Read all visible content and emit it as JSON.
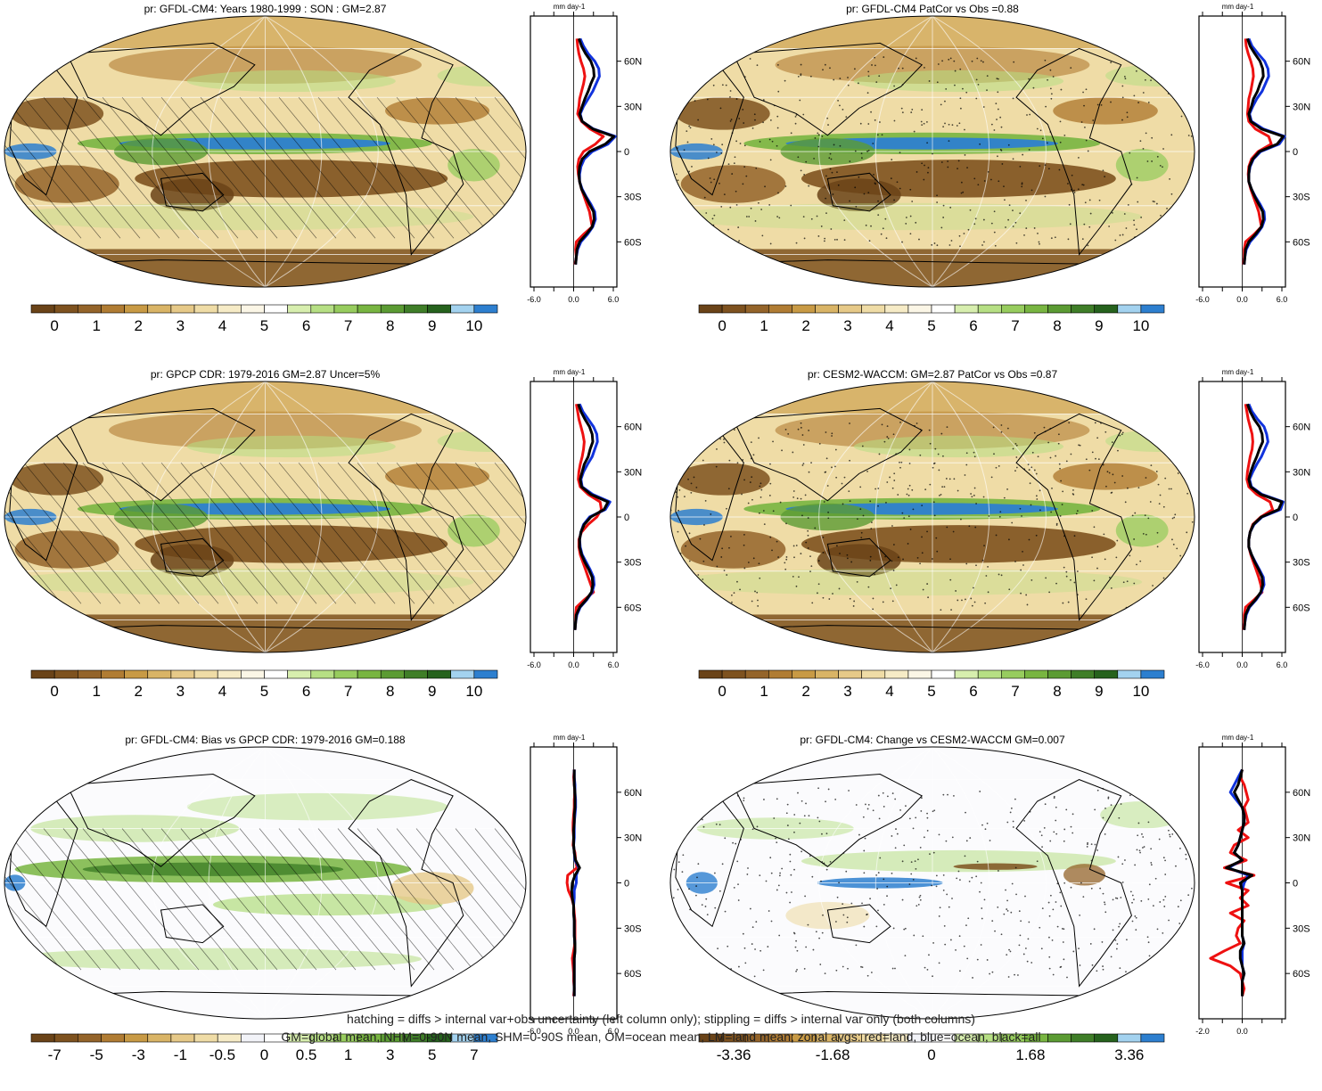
{
  "footer": {
    "line1": "hatching = diffs > internal var+obs uncertainty (left column only); stippling = diffs > internal var only (both columns)",
    "line2": "GM=global mean, NHM=0-90N mean, SHM=0-90S mean, OM=ocean mean, LM=land mean; zonal avgs: red=land, blue=ocean, black=all"
  },
  "colors": {
    "land": "#ee1111",
    "ocean": "#1133dd",
    "all": "#000000",
    "precip_scale": [
      "#6a4318",
      "#7e521f",
      "#94642a",
      "#b07c33",
      "#c89a45",
      "#d9b466",
      "#e6c988",
      "#efdca6",
      "#f6ebc6",
      "#fbf6e6",
      "#ffffff",
      "#d7eeae",
      "#b6df84",
      "#97cc5e",
      "#78b541",
      "#5b9b33",
      "#3f7e28",
      "#26621d",
      "#a3d2ef",
      "#2d7fcf"
    ],
    "bias_scale": [
      "#6a4318",
      "#7e521f",
      "#94642a",
      "#b07c33",
      "#c89a45",
      "#d9b466",
      "#e6c988",
      "#efdca6",
      "#f6ebc6",
      "#f2f3f8",
      "#ffffff",
      "#d7eeae",
      "#b6df84",
      "#97cc5e",
      "#78b541",
      "#5b9b33",
      "#3f7e28",
      "#26621d",
      "#a3d2ef",
      "#2d7fcf"
    ]
  },
  "chart_data": [
    {
      "id": "cm4",
      "type": "heatmap",
      "title": "pr: GFDL-CM4: Years 1980-1999 : SON : GM=2.87",
      "colorbar_labels": [
        "0",
        "1",
        "2",
        "3",
        "4",
        "5",
        "6",
        "7",
        "8",
        "9",
        "10"
      ],
      "colorbar_ticks": [
        0,
        1,
        2,
        3,
        4,
        5,
        6,
        7,
        8,
        9,
        10
      ],
      "hatching": true,
      "zonal_mean": {
        "units": "mm day-1",
        "xticks": [
          "-6.0",
          "0.0",
          "6.0"
        ],
        "xlim": [
          -6,
          6
        ],
        "yticks": [
          "60N",
          "30N",
          "0",
          "30S",
          "60S"
        ],
        "lat": [
          75,
          70,
          65,
          60,
          55,
          50,
          45,
          40,
          35,
          30,
          25,
          20,
          15,
          10,
          5,
          0,
          -5,
          -10,
          -15,
          -20,
          -25,
          -30,
          -35,
          -40,
          -45,
          -50,
          -55,
          -60,
          -65,
          -70,
          -75
        ],
        "land": [
          0.5,
          0.6,
          0.8,
          1.1,
          1.5,
          1.7,
          1.5,
          1.2,
          0.9,
          0.8,
          0.6,
          1.2,
          2.5,
          4.5,
          3.3,
          1.5,
          0.8,
          0.6,
          0.7,
          0.9,
          1.2,
          1.6,
          2.0,
          2.4,
          2.6,
          2.8,
          1.5,
          0.4,
          0.3,
          0.4,
          0.2
        ],
        "ocean": [
          1.0,
          1.5,
          2.2,
          3.2,
          3.8,
          3.9,
          3.4,
          2.9,
          2.2,
          1.5,
          1.0,
          1.3,
          3.0,
          6.3,
          5.2,
          2.8,
          1.6,
          1.1,
          0.9,
          0.9,
          1.3,
          1.9,
          2.6,
          3.2,
          3.3,
          2.9,
          2.1,
          1.1,
          0.6,
          0.4,
          0.3
        ],
        "all": [
          0.8,
          1.2,
          1.8,
          2.6,
          3.0,
          3.1,
          2.6,
          2.2,
          1.7,
          1.3,
          0.9,
          1.3,
          2.9,
          6.1,
          4.8,
          2.4,
          1.3,
          0.9,
          0.8,
          0.9,
          1.2,
          1.8,
          2.4,
          3.0,
          3.1,
          2.8,
          1.9,
          0.9,
          0.5,
          0.4,
          0.3
        ]
      }
    },
    {
      "id": "cm4_patcor",
      "type": "heatmap",
      "title": "pr: GFDL-CM4 PatCor vs Obs =0.88",
      "colorbar_labels": [
        "0",
        "1",
        "2",
        "3",
        "4",
        "5",
        "6",
        "7",
        "8",
        "9",
        "10"
      ],
      "colorbar_ticks": [
        0,
        1,
        2,
        3,
        4,
        5,
        6,
        7,
        8,
        9,
        10
      ],
      "stippling": true,
      "zonal_mean": {
        "units": "mm day-1",
        "xticks": [
          "-6.0",
          "0.0",
          "6.0"
        ],
        "xlim": [
          -6,
          6
        ],
        "yticks": [
          "60N",
          "30N",
          "0",
          "30S",
          "60S"
        ],
        "lat": [
          75,
          70,
          65,
          60,
          55,
          50,
          45,
          40,
          35,
          30,
          25,
          20,
          15,
          10,
          5,
          0,
          -5,
          -10,
          -15,
          -20,
          -25,
          -30,
          -35,
          -40,
          -45,
          -50,
          -55,
          -60,
          -65,
          -70,
          -75
        ],
        "land": [
          0.5,
          0.6,
          0.9,
          1.3,
          1.6,
          1.7,
          1.5,
          1.3,
          1.0,
          0.9,
          0.8,
          1.0,
          2.0,
          4.0,
          4.4,
          2.4,
          1.4,
          1.0,
          0.9,
          1.0,
          1.3,
          1.7,
          2.1,
          2.5,
          2.7,
          2.9,
          1.8,
          0.5,
          0.3,
          0.3,
          0.2
        ],
        "ocean": [
          1.0,
          1.5,
          2.4,
          3.4,
          3.9,
          4.0,
          3.5,
          3.0,
          2.2,
          1.6,
          1.1,
          1.4,
          3.2,
          6.4,
          5.6,
          2.8,
          1.7,
          1.2,
          1.0,
          1.0,
          1.4,
          2.0,
          2.7,
          3.3,
          3.4,
          3.0,
          2.2,
          1.2,
          0.6,
          0.4,
          0.3
        ],
        "all": [
          0.8,
          1.2,
          1.9,
          2.7,
          3.1,
          3.2,
          2.7,
          2.3,
          1.7,
          1.4,
          1.0,
          1.3,
          2.9,
          6.2,
          5.3,
          2.6,
          1.6,
          1.1,
          1.0,
          1.0,
          1.4,
          1.9,
          2.5,
          3.1,
          3.2,
          2.9,
          2.0,
          1.0,
          0.5,
          0.4,
          0.3
        ]
      }
    },
    {
      "id": "gpcp",
      "type": "heatmap",
      "title": "pr: GPCP CDR: 1979-2016 GM=2.87 Uncer=5%",
      "colorbar_labels": [
        "0",
        "1",
        "2",
        "3",
        "4",
        "5",
        "6",
        "7",
        "8",
        "9",
        "10"
      ],
      "colorbar_ticks": [
        0,
        1,
        2,
        3,
        4,
        5,
        6,
        7,
        8,
        9,
        10
      ],
      "hatching": true,
      "zonal_mean": {
        "units": "mm day-1",
        "xticks": [
          "-6.0",
          "0.0",
          "6.0"
        ],
        "xlim": [
          -6,
          6
        ],
        "yticks": [
          "60N",
          "30N",
          "0",
          "30S",
          "60S"
        ],
        "lat": [
          75,
          70,
          65,
          60,
          55,
          50,
          45,
          40,
          35,
          30,
          25,
          20,
          15,
          10,
          5,
          0,
          -5,
          -10,
          -15,
          -20,
          -25,
          -30,
          -35,
          -40,
          -45,
          -50,
          -55,
          -60,
          -65,
          -70,
          -75
        ],
        "land": [
          0.4,
          0.6,
          0.8,
          1.1,
          1.4,
          1.6,
          1.5,
          1.3,
          1.0,
          0.8,
          0.7,
          1.0,
          2.2,
          4.0,
          4.2,
          3.5,
          2.2,
          1.2,
          0.8,
          0.8,
          1.0,
          1.4,
          1.8,
          2.2,
          2.6,
          3.0,
          1.6,
          0.4,
          0.3,
          0.3,
          0.2
        ],
        "ocean": [
          0.9,
          1.4,
          2.2,
          3.0,
          3.5,
          3.6,
          3.2,
          2.8,
          2.1,
          1.5,
          1.1,
          1.3,
          2.9,
          5.5,
          4.8,
          2.4,
          1.5,
          1.1,
          0.9,
          1.0,
          1.3,
          1.9,
          2.5,
          3.0,
          3.1,
          2.8,
          2.0,
          1.0,
          0.5,
          0.3,
          0.2
        ],
        "all": [
          0.7,
          1.1,
          1.7,
          2.4,
          2.8,
          2.9,
          2.5,
          2.2,
          1.6,
          1.3,
          1.0,
          1.2,
          2.6,
          5.2,
          4.6,
          2.6,
          1.6,
          1.1,
          0.9,
          0.9,
          1.2,
          1.7,
          2.3,
          2.8,
          2.9,
          2.7,
          1.9,
          0.9,
          0.4,
          0.3,
          0.2
        ]
      }
    },
    {
      "id": "waccm",
      "type": "heatmap",
      "title": "pr: CESM2-WACCM: GM=2.87 PatCor vs Obs =0.87",
      "colorbar_labels": [
        "0",
        "1",
        "2",
        "3",
        "4",
        "5",
        "6",
        "7",
        "8",
        "9",
        "10"
      ],
      "colorbar_ticks": [
        0,
        1,
        2,
        3,
        4,
        5,
        6,
        7,
        8,
        9,
        10
      ],
      "stippling": true,
      "zonal_mean": {
        "units": "mm day-1",
        "xticks": [
          "-6.0",
          "0.0",
          "6.0"
        ],
        "xlim": [
          -6,
          6
        ],
        "yticks": [
          "60N",
          "30N",
          "0",
          "30S",
          "60S"
        ],
        "lat": [
          75,
          70,
          65,
          60,
          55,
          50,
          45,
          40,
          35,
          30,
          25,
          20,
          15,
          10,
          5,
          0,
          -5,
          -10,
          -15,
          -20,
          -25,
          -30,
          -35,
          -40,
          -45,
          -50,
          -55,
          -60,
          -65,
          -70,
          -75
        ],
        "land": [
          0.5,
          0.7,
          0.9,
          1.2,
          1.5,
          1.6,
          1.5,
          1.2,
          1.0,
          0.8,
          0.7,
          1.0,
          2.2,
          4.2,
          4.6,
          2.8,
          1.6,
          1.2,
          1.0,
          1.0,
          1.3,
          1.7,
          2.1,
          2.5,
          2.8,
          3.0,
          1.8,
          0.5,
          0.3,
          0.3,
          0.2
        ],
        "ocean": [
          1.0,
          1.5,
          2.3,
          3.3,
          3.7,
          3.9,
          3.4,
          2.9,
          2.2,
          1.6,
          1.1,
          1.4,
          3.0,
          6.2,
          5.8,
          3.0,
          1.8,
          1.2,
          1.0,
          1.0,
          1.4,
          2.0,
          2.6,
          3.2,
          3.3,
          2.9,
          2.1,
          1.1,
          0.6,
          0.4,
          0.3
        ],
        "all": [
          0.8,
          1.2,
          1.8,
          2.6,
          3.0,
          3.1,
          2.6,
          2.2,
          1.7,
          1.3,
          1.0,
          1.3,
          2.8,
          6.0,
          5.5,
          2.9,
          1.7,
          1.2,
          1.0,
          1.0,
          1.4,
          1.9,
          2.5,
          3.0,
          3.1,
          2.8,
          2.0,
          1.0,
          0.5,
          0.4,
          0.3
        ]
      }
    },
    {
      "id": "bias",
      "type": "heatmap",
      "title": "pr: GFDL-CM4: Bias vs GPCP CDR: 1979-2016  GM=0.188",
      "colorbar_labels": [
        "-7",
        "-5",
        "-3",
        "-1",
        "-0.5",
        "0",
        "0.5",
        "1",
        "3",
        "5",
        "7"
      ],
      "colorbar_ticks": [
        -7,
        -5,
        -3,
        -1,
        -0.5,
        0,
        0.5,
        1,
        3,
        5,
        7
      ],
      "hatching": true,
      "zonal_mean": {
        "units": "mm day-1",
        "xticks": [
          "-6.0",
          "0.0",
          "6.0"
        ],
        "xlim": [
          -6,
          6
        ],
        "yticks": [
          "60N",
          "30N",
          "0",
          "30S",
          "60S"
        ],
        "lat": [
          75,
          70,
          65,
          60,
          55,
          50,
          45,
          40,
          35,
          30,
          25,
          20,
          15,
          10,
          5,
          0,
          -5,
          -10,
          -15,
          -20,
          -25,
          -30,
          -35,
          -40,
          -45,
          -50,
          -55,
          -60,
          -65,
          -70,
          -75
        ],
        "land": [
          0.1,
          0.0,
          0.1,
          0.2,
          0.1,
          0.1,
          0.0,
          -0.1,
          -0.1,
          0.0,
          -0.1,
          0.2,
          0.3,
          0.5,
          -0.9,
          -1.0,
          -0.8,
          -0.3,
          0.0,
          0.1,
          0.2,
          0.2,
          0.2,
          0.2,
          0.0,
          -0.2,
          -0.1,
          0.0,
          0.0,
          0.1,
          0.0
        ],
        "ocean": [
          0.1,
          0.1,
          0.2,
          0.2,
          0.3,
          0.3,
          0.2,
          0.1,
          0.1,
          0.1,
          0.0,
          0.1,
          0.2,
          0.8,
          0.4,
          0.4,
          0.1,
          0.1,
          0.0,
          0.0,
          0.1,
          0.1,
          0.1,
          0.2,
          0.2,
          0.1,
          0.1,
          0.1,
          0.1,
          0.1,
          0.1
        ],
        "all": [
          0.1,
          0.1,
          0.1,
          0.2,
          0.2,
          0.2,
          0.1,
          0.1,
          0.0,
          0.0,
          0.0,
          0.1,
          0.3,
          0.9,
          0.2,
          -0.2,
          -0.3,
          -0.2,
          0.0,
          0.0,
          0.1,
          0.1,
          0.1,
          0.2,
          0.2,
          0.1,
          0.1,
          0.1,
          0.1,
          0.1,
          0.1
        ]
      }
    },
    {
      "id": "change",
      "type": "heatmap",
      "title": "pr: GFDL-CM4: Change vs CESM2-WACCM GM=0.007",
      "colorbar_labels": [
        "-3.36",
        "-1.68",
        "0",
        "1.68",
        "3.36"
      ],
      "colorbar_ticks": [
        -3.36,
        -1.68,
        0,
        1.68,
        3.36
      ],
      "stippling": true,
      "zonal_mean": {
        "units": "mm day-1",
        "xticks": [
          "-2.0",
          "0.0"
        ],
        "xlim": [
          -2,
          2
        ],
        "yticks": [
          "60N",
          "30N",
          "0",
          "30S",
          "60S"
        ],
        "lat": [
          75,
          70,
          65,
          60,
          55,
          50,
          45,
          40,
          35,
          30,
          25,
          20,
          15,
          10,
          5,
          0,
          -5,
          -10,
          -15,
          -20,
          -25,
          -30,
          -35,
          -40,
          -45,
          -50,
          -55,
          -60,
          -65,
          -70,
          -75
        ],
        "land": [
          0.0,
          -0.1,
          0.1,
          0.2,
          0.3,
          0.1,
          0.2,
          0.3,
          -0.2,
          0.3,
          -0.4,
          -0.6,
          0.2,
          -0.9,
          0.6,
          -0.8,
          0.3,
          -0.1,
          0.3,
          -0.6,
          0.1,
          -0.2,
          -0.3,
          -0.1,
          -0.9,
          -1.6,
          -0.6,
          -0.1,
          0.0,
          0.1,
          0.0
        ],
        "ocean": [
          0.0,
          -0.2,
          -0.4,
          -0.6,
          -0.3,
          0.0,
          0.1,
          0.1,
          0.0,
          -0.1,
          -0.2,
          -0.4,
          0.0,
          -0.7,
          0.3,
          0.1,
          0.0,
          0.0,
          0.0,
          0.0,
          0.0,
          0.0,
          0.0,
          0.1,
          0.0,
          0.0,
          0.0,
          0.1,
          0.0,
          0.0,
          0.0
        ],
        "all": [
          0.0,
          -0.1,
          -0.2,
          -0.4,
          -0.2,
          0.0,
          0.1,
          0.1,
          0.0,
          -0.1,
          -0.2,
          -0.4,
          0.0,
          -0.8,
          0.5,
          -0.1,
          0.0,
          0.0,
          0.0,
          0.0,
          0.0,
          0.0,
          0.0,
          0.1,
          -0.1,
          -0.1,
          0.0,
          0.1,
          0.0,
          0.0,
          0.0
        ]
      }
    }
  ]
}
